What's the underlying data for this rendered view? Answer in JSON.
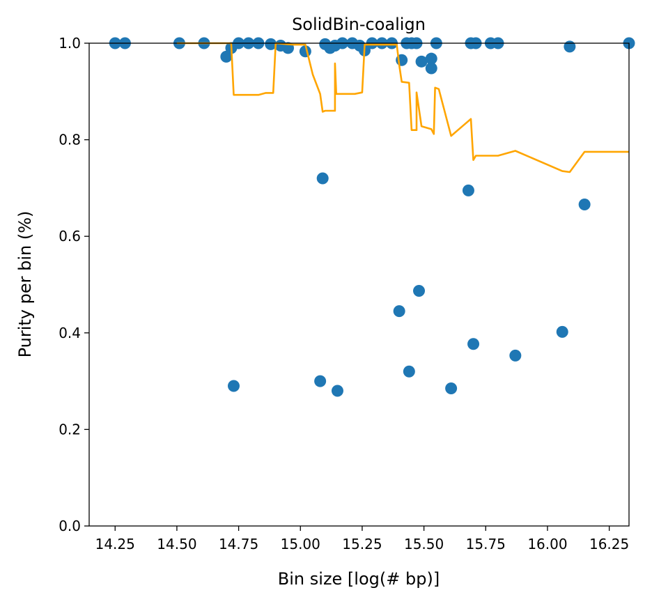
{
  "chart_data": {
    "type": "scatter",
    "title": "SolidBin-coalign",
    "xlabel": "Bin size [log(# bp)]",
    "ylabel": "Purity per bin (%)",
    "xlim": [
      14.145,
      16.33
    ],
    "ylim": [
      0.0,
      1.0
    ],
    "xticks": [
      14.25,
      14.5,
      14.75,
      15.0,
      15.25,
      15.5,
      15.75,
      16.0,
      16.25
    ],
    "xtick_labels": [
      "14.25",
      "14.50",
      "14.75",
      "15.00",
      "15.25",
      "15.50",
      "15.75",
      "16.00",
      "16.25"
    ],
    "yticks": [
      0.0,
      0.2,
      0.4,
      0.6,
      0.8,
      1.0
    ],
    "ytick_labels": [
      "0.0",
      "0.2",
      "0.4",
      "0.6",
      "0.8",
      "1.0"
    ],
    "grid": false,
    "colors": {
      "points": "#1f77b4",
      "line": "#ffa500"
    },
    "points": [
      [
        14.25,
        1.0
      ],
      [
        14.29,
        1.0
      ],
      [
        14.51,
        1.0
      ],
      [
        14.61,
        1.0
      ],
      [
        14.7,
        0.972
      ],
      [
        14.72,
        0.99
      ],
      [
        14.73,
        0.29
      ],
      [
        14.75,
        1.0
      ],
      [
        14.79,
        1.0
      ],
      [
        14.83,
        1.0
      ],
      [
        14.88,
        0.998
      ],
      [
        14.92,
        0.995
      ],
      [
        14.95,
        0.99
      ],
      [
        15.02,
        0.983
      ],
      [
        15.08,
        0.3
      ],
      [
        15.09,
        0.72
      ],
      [
        15.1,
        0.998
      ],
      [
        15.12,
        0.99
      ],
      [
        15.14,
        0.995
      ],
      [
        15.15,
        0.28
      ],
      [
        15.17,
        1.0
      ],
      [
        15.21,
        1.0
      ],
      [
        15.24,
        0.995
      ],
      [
        15.26,
        0.985
      ],
      [
        15.29,
        1.0
      ],
      [
        15.33,
        1.0
      ],
      [
        15.37,
        1.0
      ],
      [
        15.4,
        0.445
      ],
      [
        15.41,
        0.965
      ],
      [
        15.43,
        1.0
      ],
      [
        15.44,
        0.32
      ],
      [
        15.45,
        1.0
      ],
      [
        15.47,
        1.0
      ],
      [
        15.48,
        0.487
      ],
      [
        15.49,
        0.962
      ],
      [
        15.53,
        0.968
      ],
      [
        15.53,
        0.948
      ],
      [
        15.55,
        1.0
      ],
      [
        15.61,
        0.285
      ],
      [
        15.68,
        0.695
      ],
      [
        15.69,
        1.0
      ],
      [
        15.7,
        0.377
      ],
      [
        15.71,
        1.0
      ],
      [
        15.77,
        1.0
      ],
      [
        15.8,
        1.0
      ],
      [
        15.87,
        0.353
      ],
      [
        16.06,
        0.402
      ],
      [
        16.09,
        0.993
      ],
      [
        16.15,
        0.666
      ],
      [
        16.33,
        1.0
      ]
    ],
    "line": [
      [
        14.5,
        1.0
      ],
      [
        14.6,
        1.0
      ],
      [
        14.72,
        1.0
      ],
      [
        14.73,
        0.893
      ],
      [
        14.83,
        0.893
      ],
      [
        14.86,
        0.897
      ],
      [
        14.89,
        0.897
      ],
      [
        14.9,
        1.0
      ],
      [
        14.97,
        0.997
      ],
      [
        15.02,
        0.997
      ],
      [
        15.05,
        0.935
      ],
      [
        15.08,
        0.895
      ],
      [
        15.09,
        0.858
      ],
      [
        15.1,
        0.86
      ],
      [
        15.14,
        0.86
      ],
      [
        15.14,
        0.958
      ],
      [
        15.145,
        0.895
      ],
      [
        15.22,
        0.895
      ],
      [
        15.25,
        0.898
      ],
      [
        15.26,
        0.997
      ],
      [
        15.39,
        0.997
      ],
      [
        15.4,
        0.955
      ],
      [
        15.41,
        0.92
      ],
      [
        15.44,
        0.918
      ],
      [
        15.45,
        0.82
      ],
      [
        15.47,
        0.82
      ],
      [
        15.47,
        0.898
      ],
      [
        15.49,
        0.828
      ],
      [
        15.53,
        0.822
      ],
      [
        15.54,
        0.812
      ],
      [
        15.545,
        0.908
      ],
      [
        15.56,
        0.905
      ],
      [
        15.61,
        0.808
      ],
      [
        15.66,
        0.83
      ],
      [
        15.69,
        0.843
      ],
      [
        15.7,
        0.758
      ],
      [
        15.71,
        0.767
      ],
      [
        15.8,
        0.767
      ],
      [
        15.87,
        0.777
      ],
      [
        16.06,
        0.735
      ],
      [
        16.09,
        0.733
      ],
      [
        16.15,
        0.775
      ],
      [
        16.33,
        0.775
      ]
    ]
  }
}
